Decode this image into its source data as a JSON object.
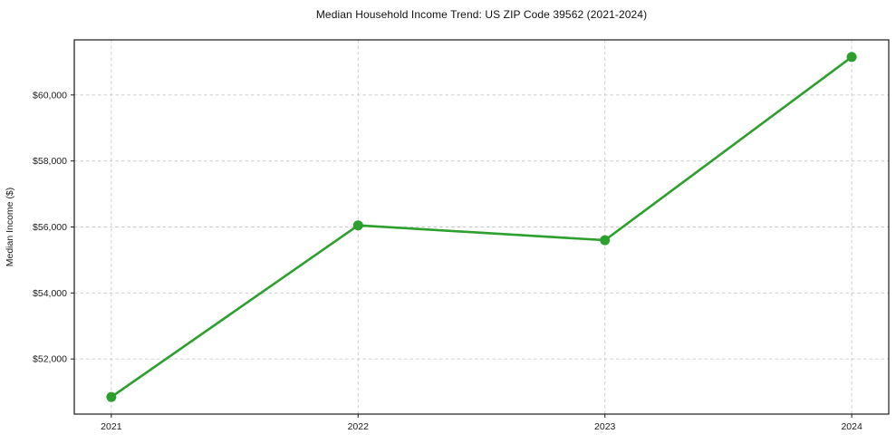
{
  "chart": {
    "title": "Median Household Income Trend: US ZIP Code 39562 (2021-2024)"
  },
  "chart_data": {
    "type": "line",
    "title": "Median Household Income Trend: US ZIP Code 39562 (2021-2024)",
    "xlabel": "",
    "ylabel": "Median Income ($)",
    "x": [
      2021,
      2022,
      2023,
      2024
    ],
    "x_tick_labels": [
      "2021",
      "2022",
      "2023",
      "2024"
    ],
    "series": [
      {
        "name": "Median Household Income",
        "values": [
          50850,
          56050,
          55600,
          61150
        ]
      }
    ],
    "y_ticks": [
      52000,
      54000,
      56000,
      58000,
      60000
    ],
    "y_tick_labels": [
      "$52,000",
      "$54,000",
      "$56,000",
      "$58,000",
      "$60,000"
    ],
    "xlim": [
      2020.85,
      2024.15
    ],
    "ylim": [
      50330,
      61670
    ],
    "grid": true,
    "grid_style": "dashed",
    "legend": "none",
    "line_color": "#2ca02c",
    "marker": "circle",
    "grid_color": "#c9c9c9",
    "spine_color": "#1a1a1a",
    "background": "#ffffff"
  }
}
